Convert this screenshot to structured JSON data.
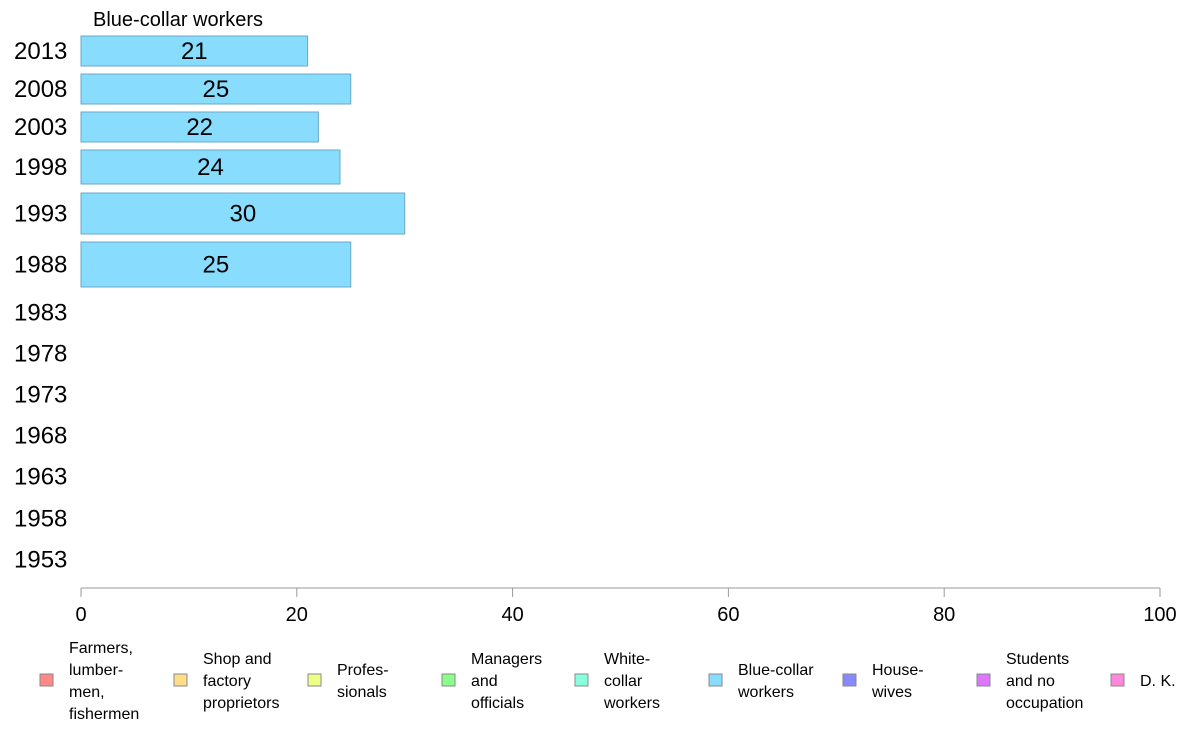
{
  "chart_data": {
    "type": "bar",
    "orientation": "horizontal",
    "title": "Blue-collar workers",
    "categories": [
      "2013",
      "2008",
      "2003",
      "1998",
      "1993",
      "1988",
      "1983",
      "1978",
      "1973",
      "1968",
      "1963",
      "1958",
      "1953"
    ],
    "series": [
      {
        "name": "Blue-collar workers",
        "values": [
          21,
          25,
          22,
          24,
          30,
          25,
          null,
          null,
          null,
          null,
          null,
          null,
          null
        ],
        "labels": [
          "21",
          "25",
          "22",
          "24",
          "30",
          "25",
          "",
          "",
          "",
          "",
          "",
          "",
          ""
        ]
      }
    ],
    "xlim": [
      0,
      100
    ],
    "xticks": [
      "0",
      "20",
      "40",
      "60",
      "80",
      "100"
    ],
    "grid": false,
    "legend_position": "bottom",
    "legend": [
      {
        "lines": [
          "Farmers,",
          "lumber-",
          "men,",
          "fishermen"
        ],
        "color": "#ff8888"
      },
      {
        "lines": [
          "Shop and",
          "factory",
          "proprietors"
        ],
        "color": "#ffdd88"
      },
      {
        "lines": [
          "Profes-",
          "sionals"
        ],
        "color": "#eeff88"
      },
      {
        "lines": [
          "Managers",
          "and",
          "officials"
        ],
        "color": "#88ff88"
      },
      {
        "lines": [
          "White-",
          "collar",
          "workers"
        ],
        "color": "#88ffdd"
      },
      {
        "lines": [
          "Blue-collar",
          "workers"
        ],
        "color": "#88ddff"
      },
      {
        "lines": [
          "House-",
          "wives"
        ],
        "color": "#8888ff"
      },
      {
        "lines": [
          "Students",
          "and no",
          "occupation"
        ],
        "color": "#dd77ff"
      },
      {
        "lines": [
          "D. K."
        ],
        "color": "#ff88dd"
      }
    ]
  }
}
